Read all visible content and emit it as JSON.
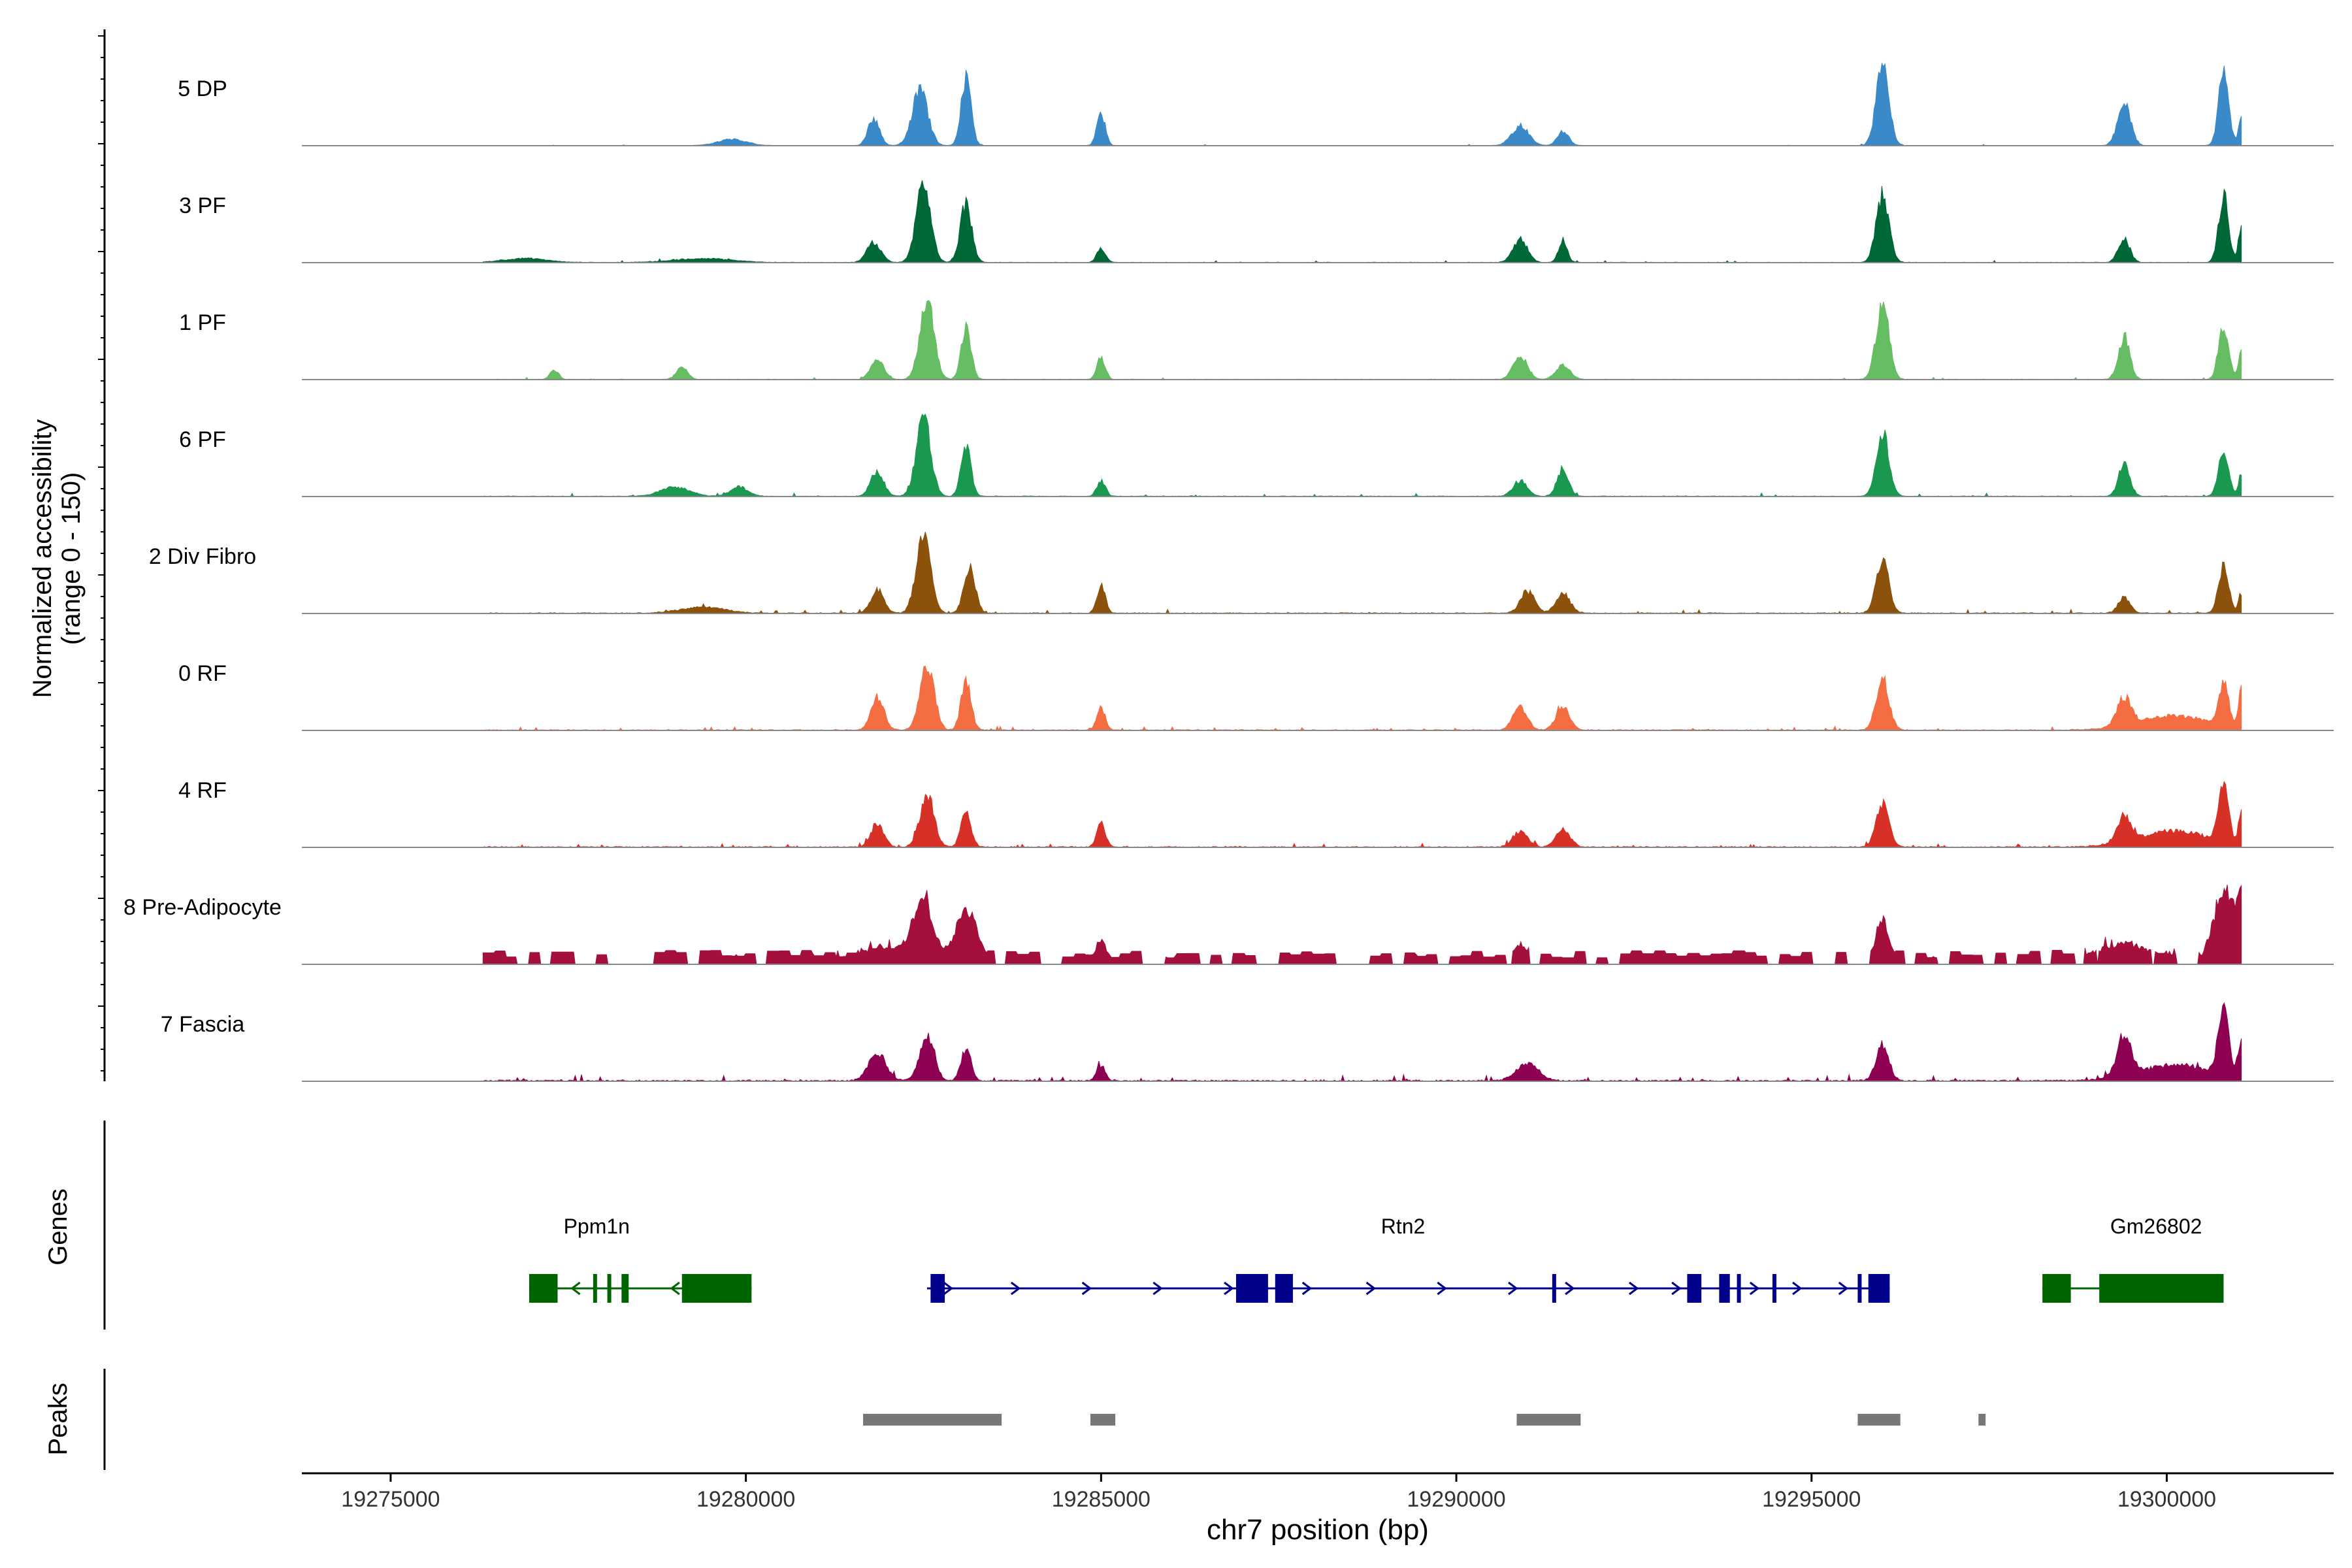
{
  "chart_data": {
    "type": "area",
    "title": "",
    "ylabel_line1": "Normalized accessibility",
    "ylabel_line2": "(range 0 - 150)",
    "xlabel": "chr7 position (bp)",
    "xlim": [
      19273750,
      19302350
    ],
    "data_start": 19276300,
    "data_end": 19301050,
    "x_ticks": [
      {
        "value": 19275000,
        "label": "19275000"
      },
      {
        "value": 19280000,
        "label": "19280000"
      },
      {
        "value": 19285000,
        "label": "19285000"
      },
      {
        "value": 19290000,
        "label": "19290000"
      },
      {
        "value": 19295000,
        "label": "19295000"
      },
      {
        "value": 19300000,
        "label": "19300000"
      }
    ],
    "series": [
      {
        "name": "5 DP",
        "color": "#3A89C9",
        "noise": 0.35,
        "scale": 1.0,
        "peaks": [
          [
            19279800,
            200,
            0.08
          ],
          [
            19281800,
            80,
            0.35
          ],
          [
            19282450,
            110,
            0.7
          ],
          [
            19283100,
            70,
            0.85
          ],
          [
            19285000,
            60,
            0.4
          ],
          [
            19290900,
            120,
            0.25
          ],
          [
            19291500,
            80,
            0.18
          ],
          [
            19296000,
            90,
            1.0
          ],
          [
            19299400,
            90,
            0.55
          ],
          [
            19300800,
            70,
            0.95
          ],
          [
            19301050,
            40,
            0.35
          ]
        ]
      },
      {
        "name": "3 PF",
        "color": "#006837",
        "noise": 0.5,
        "scale": 1.0,
        "peaks": [
          [
            19276900,
            300,
            0.05
          ],
          [
            19279400,
            400,
            0.05
          ],
          [
            19281800,
            100,
            0.25
          ],
          [
            19282500,
            100,
            1.0
          ],
          [
            19283100,
            80,
            0.75
          ],
          [
            19285000,
            60,
            0.18
          ],
          [
            19290900,
            100,
            0.3
          ],
          [
            19291500,
            60,
            0.28
          ],
          [
            19296000,
            90,
            0.85
          ],
          [
            19299400,
            80,
            0.3
          ],
          [
            19300800,
            70,
            0.85
          ],
          [
            19301050,
            40,
            0.45
          ]
        ]
      },
      {
        "name": "1 PF",
        "color": "#66BD63",
        "noise": 0.5,
        "scale": 1.0,
        "peaks": [
          [
            19277300,
            60,
            0.12
          ],
          [
            19279100,
            80,
            0.15
          ],
          [
            19281850,
            90,
            0.28
          ],
          [
            19282550,
            100,
            1.0
          ],
          [
            19283100,
            70,
            0.65
          ],
          [
            19285000,
            60,
            0.28
          ],
          [
            19290900,
            100,
            0.3
          ],
          [
            19291500,
            100,
            0.18
          ],
          [
            19296000,
            90,
            0.95
          ],
          [
            19299400,
            80,
            0.55
          ],
          [
            19300800,
            70,
            0.68
          ],
          [
            19301050,
            40,
            0.35
          ]
        ]
      },
      {
        "name": "6 PF",
        "color": "#1A9850",
        "noise": 0.7,
        "scale": 1.0,
        "peaks": [
          [
            19279000,
            200,
            0.12
          ],
          [
            19279900,
            120,
            0.12
          ],
          [
            19281850,
            90,
            0.32
          ],
          [
            19282500,
            100,
            1.0
          ],
          [
            19283100,
            70,
            0.62
          ],
          [
            19285000,
            60,
            0.2
          ],
          [
            19290900,
            100,
            0.2
          ],
          [
            19291500,
            80,
            0.35
          ],
          [
            19296000,
            90,
            0.8
          ],
          [
            19299400,
            80,
            0.4
          ],
          [
            19300800,
            70,
            0.58
          ],
          [
            19301050,
            40,
            0.28
          ]
        ]
      },
      {
        "name": "2 Div Fibro",
        "color": "#8C510A",
        "noise": 0.9,
        "scale": 1.0,
        "peaks": [
          [
            19279400,
            300,
            0.08
          ],
          [
            19281850,
            90,
            0.3
          ],
          [
            19282500,
            100,
            1.0
          ],
          [
            19283150,
            80,
            0.58
          ],
          [
            19285000,
            60,
            0.35
          ],
          [
            19291000,
            100,
            0.28
          ],
          [
            19291500,
            100,
            0.25
          ],
          [
            19296000,
            90,
            0.65
          ],
          [
            19299400,
            80,
            0.2
          ],
          [
            19300800,
            70,
            0.6
          ],
          [
            19301050,
            40,
            0.25
          ]
        ]
      },
      {
        "name": "0 RF",
        "color": "#F46D43",
        "noise": 0.9,
        "scale": 1.0,
        "peaks": [
          [
            19281850,
            90,
            0.42
          ],
          [
            19282550,
            100,
            0.82
          ],
          [
            19283100,
            70,
            0.62
          ],
          [
            19285000,
            60,
            0.28
          ],
          [
            19290900,
            100,
            0.3
          ],
          [
            19291500,
            100,
            0.28
          ],
          [
            19296000,
            90,
            0.65
          ],
          [
            19299400,
            100,
            0.35
          ],
          [
            19300100,
            500,
            0.18
          ],
          [
            19300800,
            70,
            0.55
          ],
          [
            19301050,
            40,
            0.5
          ]
        ]
      },
      {
        "name": "4 RF",
        "color": "#D73027",
        "noise": 1.0,
        "scale": 1.0,
        "peaks": [
          [
            19281850,
            90,
            0.3
          ],
          [
            19282550,
            100,
            0.65
          ],
          [
            19283100,
            70,
            0.45
          ],
          [
            19285000,
            60,
            0.3
          ],
          [
            19290900,
            100,
            0.2
          ],
          [
            19291500,
            100,
            0.22
          ],
          [
            19296000,
            90,
            0.55
          ],
          [
            19299400,
            100,
            0.3
          ],
          [
            19300100,
            500,
            0.2
          ],
          [
            19300800,
            70,
            0.72
          ],
          [
            19301050,
            40,
            0.4
          ]
        ]
      },
      {
        "name": "8 Pre-Adipocyte",
        "color": "#A50F3B",
        "noise": 2.2,
        "scale": 1.0,
        "sparse": true,
        "peaks": [
          [
            19281900,
            400,
            0.2
          ],
          [
            19282500,
            150,
            0.7
          ],
          [
            19283100,
            150,
            0.7
          ],
          [
            19285000,
            80,
            0.3
          ],
          [
            19290900,
            100,
            0.25
          ],
          [
            19296000,
            100,
            0.55
          ],
          [
            19299400,
            400,
            0.25
          ],
          [
            19300800,
            150,
            0.9
          ],
          [
            19301050,
            60,
            0.9
          ]
        ]
      },
      {
        "name": "7 Fascia",
        "color": "#8E0152",
        "noise": 1.4,
        "scale": 1.0,
        "peaks": [
          [
            19281850,
            120,
            0.35
          ],
          [
            19282550,
            100,
            0.6
          ],
          [
            19283100,
            70,
            0.4
          ],
          [
            19285000,
            60,
            0.2
          ],
          [
            19291000,
            150,
            0.22
          ],
          [
            19296000,
            90,
            0.45
          ],
          [
            19299400,
            100,
            0.5
          ],
          [
            19300100,
            500,
            0.2
          ],
          [
            19300800,
            80,
            0.8
          ],
          [
            19301050,
            40,
            0.5
          ]
        ]
      }
    ],
    "genes": [
      {
        "name": "Ppm1n",
        "color": "#006400",
        "strand": "-",
        "start": 19276950,
        "end": 19280080,
        "label_pos": 19277900,
        "exons": [
          [
            19276950,
            19277350
          ],
          [
            19277850,
            19277900
          ],
          [
            19278050,
            19278100
          ],
          [
            19278250,
            19278350
          ],
          [
            19279100,
            19280080
          ]
        ],
        "arrows": [
          19277600,
          19279000
        ]
      },
      {
        "name": "Rtn2",
        "color": "#00008B",
        "strand": "+",
        "start": 19282550,
        "end": 19296100,
        "label_pos": 19289250,
        "exons": [
          [
            19282600,
            19282800
          ],
          [
            19286900,
            19287350
          ],
          [
            19287450,
            19287700
          ],
          [
            19291350,
            19291400
          ],
          [
            19293250,
            19293450
          ],
          [
            19293700,
            19293850
          ],
          [
            19293950,
            19294000
          ],
          [
            19294450,
            19294500
          ],
          [
            19295650,
            19295700
          ],
          [
            19295800,
            19296100
          ]
        ],
        "arrows": [
          19282850,
          19283800,
          19284800,
          19285800,
          19286800,
          19287900,
          19288800,
          19289800,
          19290800,
          19291600,
          19292500,
          19293100,
          19294200,
          19294800,
          19295450
        ]
      },
      {
        "name": "Gm26802",
        "color": "#006400",
        "strand": "-",
        "start": 19298250,
        "end": 19300800,
        "label_pos": 19299850,
        "exons": [
          [
            19298250,
            19298650
          ],
          [
            19299050,
            19300800
          ]
        ],
        "arrows": []
      }
    ],
    "peaks": [
      [
        19281650,
        19283600
      ],
      [
        19284850,
        19285200
      ],
      [
        19290850,
        19291750
      ],
      [
        19295650,
        19296250
      ],
      [
        19297350,
        19297450
      ]
    ],
    "panel_labels": {
      "genes": "Genes",
      "peaks": "Peaks"
    },
    "tick_labels_left": [],
    "legend": "none"
  }
}
